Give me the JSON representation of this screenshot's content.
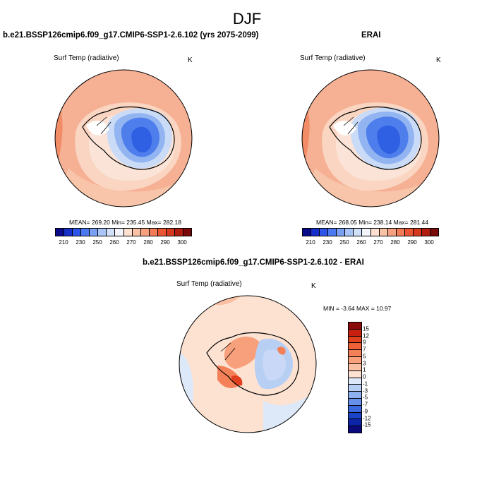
{
  "title": "DJF",
  "panels": {
    "left": {
      "title": "b.e21.BSSP126cmip6.f09_g17.CMIP6-SSP1-2.6.102 (yrs 2075-2099)",
      "variable": "Surf Temp (radiative)",
      "units": "K",
      "stats": "MEAN= 269.20  Min= 235.45  Max= 282.18"
    },
    "right": {
      "title": "ERAI",
      "variable": "Surf Temp (radiative)",
      "units": "K",
      "stats": "MEAN= 268.05  Min= 238.14  Max= 281.44"
    },
    "diff": {
      "title": "b.e21.BSSP126cmip6.f09_g17.CMIP6-SSP1-2.6.102 - ERAI",
      "variable": "Surf Temp (radiative)",
      "units": "K",
      "stats": "MIN =  -3.64 MAX =  10.97"
    }
  },
  "colorbar_abs": {
    "ticks": [
      "210",
      "230",
      "250",
      "260",
      "270",
      "280",
      "290",
      "300"
    ],
    "colors": [
      "#0a0a8c",
      "#1530c8",
      "#2c55e8",
      "#4a78f0",
      "#7aa0f5",
      "#a9c4f7",
      "#d0e0f8",
      "#f2f4fa",
      "#fde0cf",
      "#f9c2a6",
      "#f5a07e",
      "#f27b58",
      "#ea5634",
      "#d63a1e",
      "#b01e10",
      "#7a0a0a"
    ]
  },
  "colorbar_diff": {
    "ticks": [
      "15",
      "12",
      "9",
      "7",
      "5",
      "3",
      "1",
      "0",
      "-1",
      "-3",
      "-5",
      "-7",
      "-9",
      "-12",
      "-15"
    ],
    "colors": [
      "#8a0a0a",
      "#c8200e",
      "#e0401e",
      "#ee6038",
      "#f48058",
      "#f8a07c",
      "#fbc0a4",
      "#fde2d2",
      "#dde8f8",
      "#b8cff4",
      "#8eb0ef",
      "#6690ea",
      "#3c68e0",
      "#1c44c8",
      "#0c24a8",
      "#0a0a7a"
    ]
  }
}
